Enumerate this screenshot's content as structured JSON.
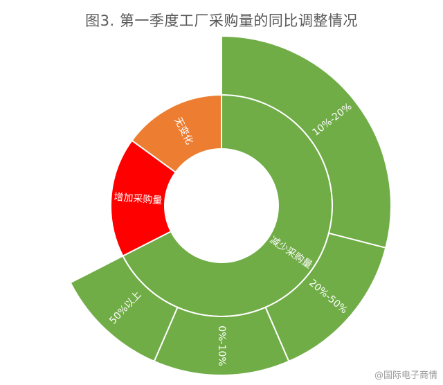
{
  "title": "图3. 第一季度工厂采购量的同比调整情况",
  "watermark": "@国际电子商情",
  "chart_data": {
    "type": "sunburst",
    "title": "图3. 第一季度工厂采购量的同比调整情况",
    "rings": {
      "inner": [
        {
          "label": "减少采购量",
          "value": 0.675,
          "color": "#70ad47"
        },
        {
          "label": "增加采购量",
          "value": 0.175,
          "color": "#ff0000"
        },
        {
          "label": "无变化",
          "value": 0.15,
          "color": "#ed7d31"
        }
      ],
      "outer": [
        {
          "parent": "减少采购量",
          "label": "10%-20%",
          "value": 0.29,
          "color": "#70ad47"
        },
        {
          "parent": "减少采购量",
          "label": "20%-50%",
          "value": 0.145,
          "color": "#70ad47"
        },
        {
          "parent": "减少采购量",
          "label": "0%-10%",
          "value": 0.13,
          "color": "#70ad47"
        },
        {
          "parent": "减少采购量",
          "label": "50%以上",
          "value": 0.11,
          "color": "#70ad47"
        }
      ]
    }
  }
}
